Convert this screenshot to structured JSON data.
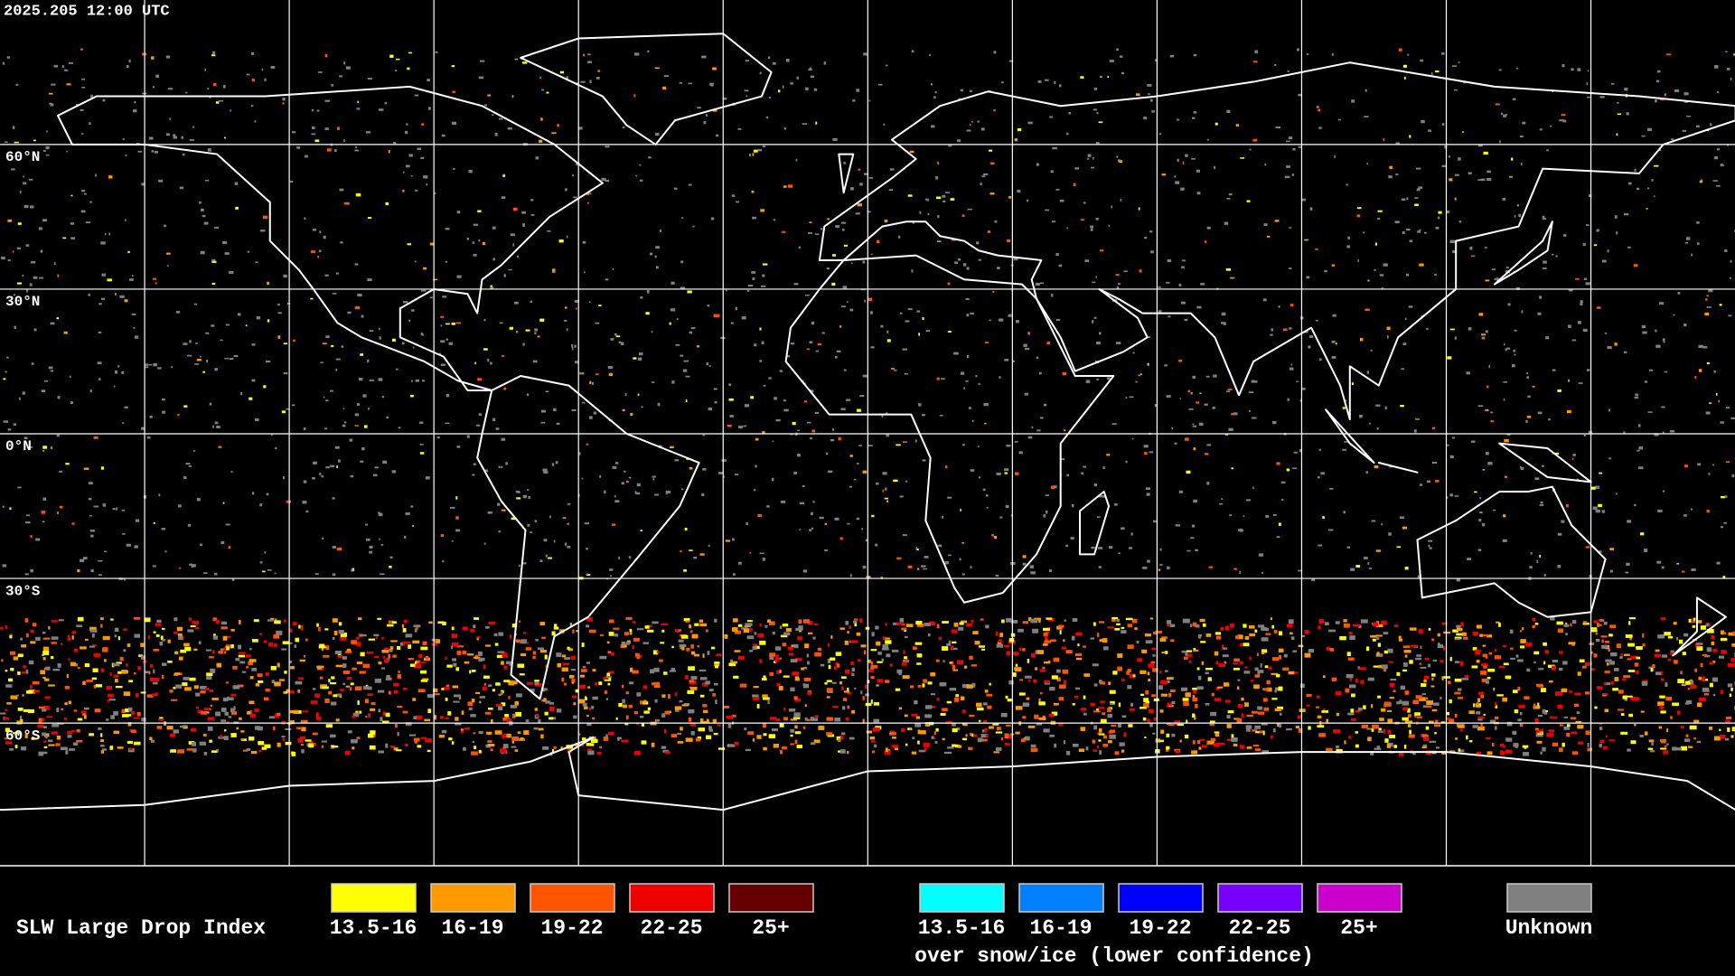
{
  "header": {
    "timestamp": "2025.205 12:00 UTC"
  },
  "latitude_labels": [
    "60°N",
    "30°N",
    "0°N",
    "30°S",
    "60°S"
  ],
  "legend": {
    "title": "SLW Large Drop Index",
    "items": [
      {
        "label": "13.5-16",
        "color": "#ffff00"
      },
      {
        "label": "16-19",
        "color": "#ff9900"
      },
      {
        "label": "19-22",
        "color": "#ff5500"
      },
      {
        "label": "22-25",
        "color": "#ee0000"
      },
      {
        "label": "25+",
        "color": "#660000"
      }
    ],
    "snow_items": [
      {
        "label": "13.5-16",
        "color": "#00ffff"
      },
      {
        "label": "16-19",
        "color": "#0080ff"
      },
      {
        "label": "19-22",
        "color": "#0000ff"
      },
      {
        "label": "22-25",
        "color": "#7700ff"
      },
      {
        "label": "25+",
        "color": "#cc00cc"
      }
    ],
    "snow_caption": "over snow/ice (lower confidence)",
    "unknown": {
      "label": "Unknown",
      "color": "#808080"
    }
  }
}
